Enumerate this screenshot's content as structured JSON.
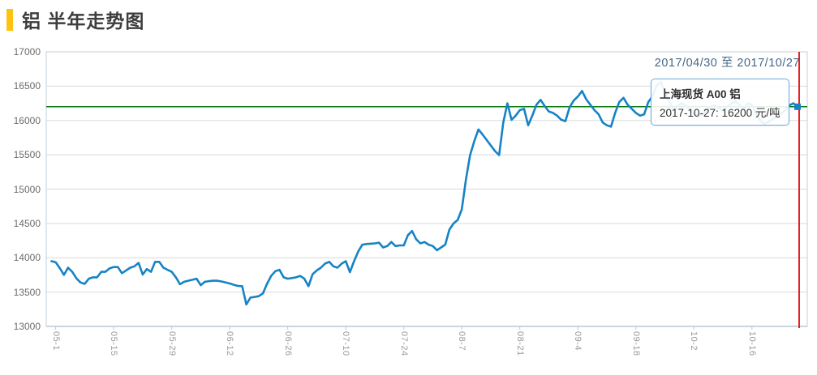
{
  "page": {
    "title": "铝 半年走势图",
    "date_range": "2017/04/30 至 2017/10/27"
  },
  "tooltip": {
    "title": "上海现货 A00 铝",
    "value_line": "2017-10-27: 16200 元/吨"
  },
  "colors": {
    "accent_bar": "#ffc20e",
    "series_line": "#1583c5",
    "current_value_line": "#0e7d10",
    "current_date_line": "#e60808",
    "grid_line": "#d9d9d9",
    "plot_border": "#c2d2dc",
    "axis_line": "#b7c9d6",
    "y_label": "#6b6b6b",
    "x_label": "#9a9a9a",
    "date_range_text": "#44688a"
  },
  "chart_data": {
    "type": "line",
    "title": "铝 半年走势图",
    "series_name": "上海现货 A00 铝",
    "unit": "元/吨",
    "start_date": "2017-04-30",
    "end_date": "2017-10-27",
    "current_point": {
      "date": "2017-10-27",
      "value": 16200
    },
    "ylim": [
      13000,
      17000
    ],
    "y_ticks": [
      13000,
      13500,
      14000,
      14500,
      15000,
      15500,
      16000,
      16500,
      17000
    ],
    "x_tick_labels": [
      "05-1",
      "05-15",
      "05-29",
      "06-12",
      "06-26",
      "07-10",
      "07-24",
      "08-7",
      "08-21",
      "09-4",
      "09-18",
      "10-2",
      "10-16"
    ],
    "x_tick_day_indices": [
      1,
      15,
      29,
      43,
      57,
      71,
      85,
      99,
      113,
      127,
      141,
      155,
      169
    ],
    "grid": true,
    "legend_position": "none",
    "values": [
      13950,
      13935,
      13850,
      13750,
      13855,
      13795,
      13700,
      13640,
      13620,
      13695,
      13715,
      13715,
      13795,
      13795,
      13845,
      13865,
      13865,
      13775,
      13815,
      13855,
      13875,
      13925,
      13755,
      13835,
      13795,
      13940,
      13940,
      13855,
      13825,
      13795,
      13715,
      13615,
      13650,
      13665,
      13680,
      13695,
      13600,
      13650,
      13660,
      13665,
      13665,
      13655,
      13640,
      13625,
      13605,
      13590,
      13585,
      13320,
      13420,
      13430,
      13440,
      13480,
      13620,
      13735,
      13805,
      13825,
      13715,
      13695,
      13705,
      13715,
      13735,
      13695,
      13585,
      13760,
      13815,
      13855,
      13915,
      13940,
      13875,
      13855,
      13915,
      13950,
      13790,
      13950,
      14090,
      14190,
      14200,
      14205,
      14210,
      14220,
      14150,
      14170,
      14230,
      14170,
      14180,
      14180,
      14330,
      14390,
      14270,
      14210,
      14230,
      14190,
      14170,
      14110,
      14150,
      14190,
      14410,
      14500,
      14550,
      14705,
      15140,
      15495,
      15695,
      15870,
      15795,
      15715,
      15635,
      15555,
      15495,
      15970,
      16250,
      16010,
      16070,
      16150,
      16170,
      15930,
      16070,
      16230,
      16300,
      16210,
      16130,
      16110,
      16070,
      16010,
      15990,
      16190,
      16290,
      16350,
      16430,
      16310,
      16230,
      16150,
      16090,
      15970,
      15930,
      15910,
      16110,
      16270,
      16330,
      16230,
      16170,
      16110,
      16070,
      16090,
      16270,
      16350,
      16510,
      16560,
      16410,
      16290,
      16150,
      16200,
      16250,
      16220,
      16150,
      16100,
      16060,
      16080,
      16150,
      16200,
      16220,
      16180,
      16150,
      16200,
      16250,
      16280,
      16230,
      16150,
      16250,
      16230,
      16100,
      16000,
      15950,
      15980,
      16020,
      16060,
      16100,
      16150,
      16220,
      16250,
      16200
    ]
  }
}
